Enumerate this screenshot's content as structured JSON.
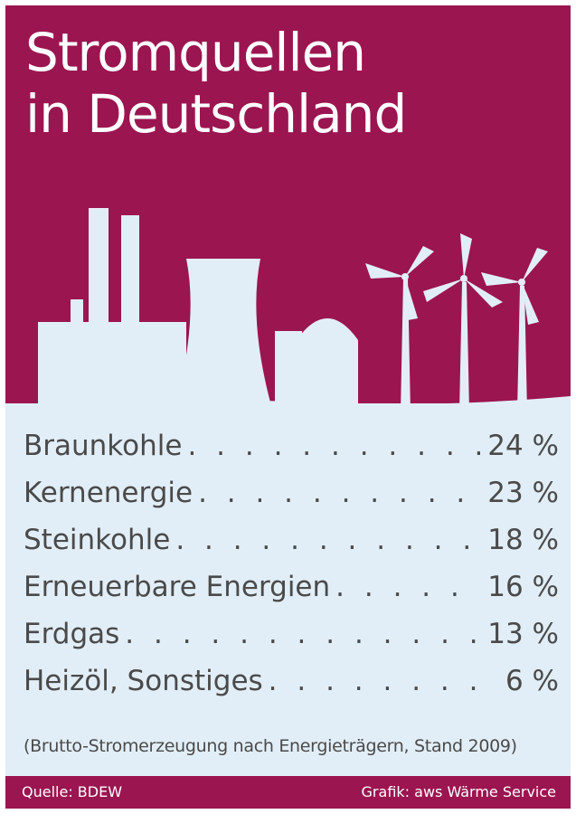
{
  "title": {
    "line1": "Stromquellen",
    "line2": "in Deutschland"
  },
  "colors": {
    "brand": "#9b1550",
    "background": "#e2eef7",
    "text": "#4a4a4a",
    "silhouette": "#e2eef7"
  },
  "illustration": {
    "icons": [
      "factory-chimneys-icon",
      "cooling-tower-icon",
      "reactor-dome-icon",
      "wind-turbine-icon"
    ]
  },
  "chart_data": {
    "type": "table",
    "title": "Stromquellen in Deutschland",
    "categories": [
      "Braunkohle",
      "Kernenergie",
      "Steinkohle",
      "Erneuerbare Energien",
      "Erdgas",
      "Heizöl, Sonstiges"
    ],
    "values": [
      24,
      23,
      18,
      16,
      13,
      6
    ],
    "value_labels": [
      "24 %",
      "23 %",
      "18 %",
      "16 %",
      "13 %",
      "6 %"
    ],
    "unit": "%",
    "note": "(Brutto-Stromerzeugung nach Energieträgern, Stand 2009)"
  },
  "footer": {
    "source": "Quelle: BDEW",
    "credit": "Grafik: aws Wärme Service"
  }
}
